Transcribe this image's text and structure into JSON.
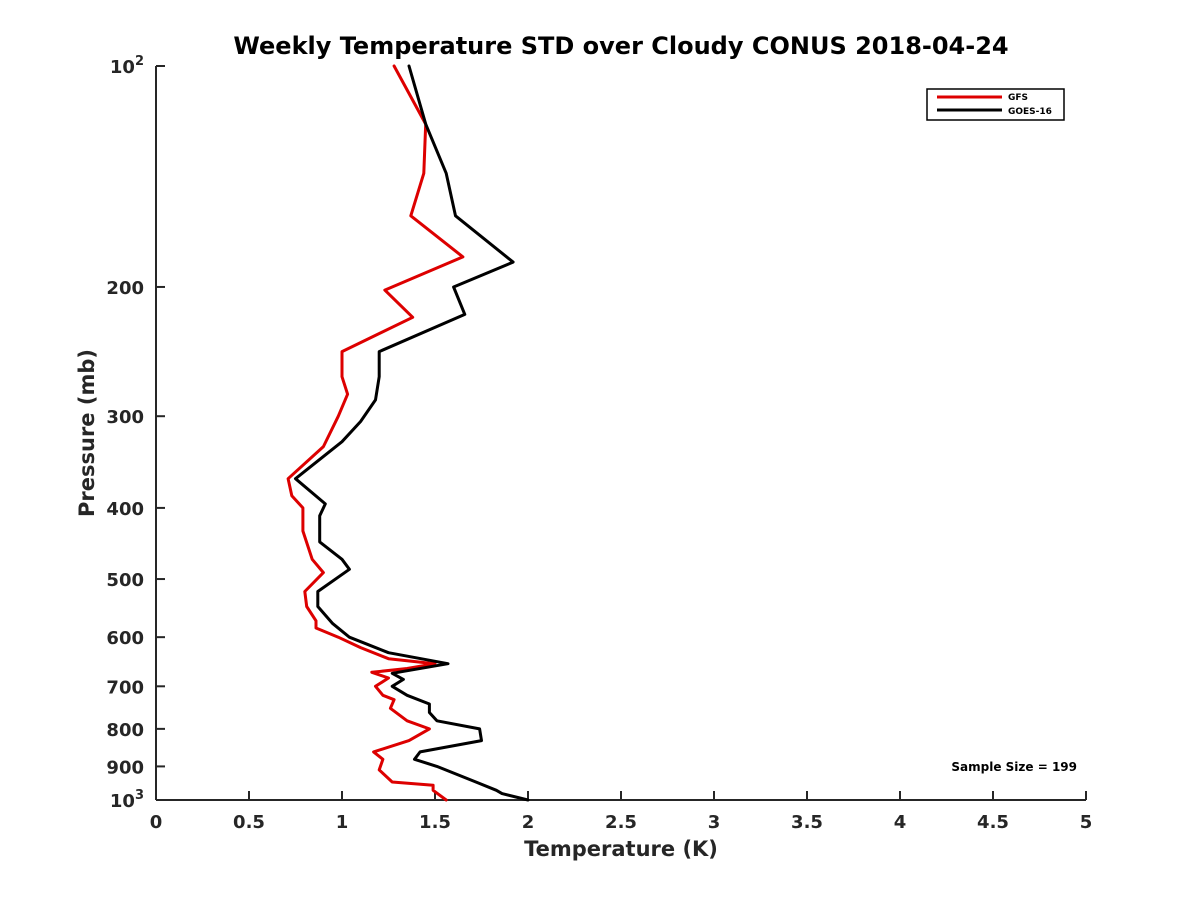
{
  "chart_data": {
    "type": "line",
    "title": "Weekly Temperature STD over Cloudy CONUS 2018-04-24",
    "xlabel": "Temperature (K)",
    "ylabel": "Pressure (mb)",
    "xlim": [
      0,
      5
    ],
    "ylim": [
      100,
      1000
    ],
    "yscale": "log",
    "yreversed": true,
    "x_ticks": [
      {
        "value": 0,
        "label": "0"
      },
      {
        "value": 0.5,
        "label": "0.5"
      },
      {
        "value": 1,
        "label": "1"
      },
      {
        "value": 1.5,
        "label": "1.5"
      },
      {
        "value": 2,
        "label": "2"
      },
      {
        "value": 2.5,
        "label": "2.5"
      },
      {
        "value": 3,
        "label": "3"
      },
      {
        "value": 3.5,
        "label": "3.5"
      },
      {
        "value": 4,
        "label": "4"
      },
      {
        "value": 4.5,
        "label": "4.5"
      },
      {
        "value": 5,
        "label": "5"
      }
    ],
    "y_ticks": [
      {
        "value": 100,
        "label": "10",
        "sup": "2"
      },
      {
        "value": 200,
        "label": "200",
        "sup": ""
      },
      {
        "value": 300,
        "label": "300",
        "sup": ""
      },
      {
        "value": 400,
        "label": "400",
        "sup": ""
      },
      {
        "value": 500,
        "label": "500",
        "sup": ""
      },
      {
        "value": 600,
        "label": "600",
        "sup": ""
      },
      {
        "value": 700,
        "label": "700",
        "sup": ""
      },
      {
        "value": 800,
        "label": "800",
        "sup": ""
      },
      {
        "value": 900,
        "label": "900",
        "sup": ""
      },
      {
        "value": 1000,
        "label": "10",
        "sup": "3"
      }
    ],
    "legend_position": "top-right",
    "annotation": "Sample Size = 199",
    "series": [
      {
        "name": "GFS",
        "color": "#dd0000",
        "points": [
          [
            1.28,
            100
          ],
          [
            1.45,
            120
          ],
          [
            1.44,
            140
          ],
          [
            1.37,
            160
          ],
          [
            1.65,
            182
          ],
          [
            1.23,
            202
          ],
          [
            1.38,
            220
          ],
          [
            1.0,
            245
          ],
          [
            1.0,
            265
          ],
          [
            1.03,
            280
          ],
          [
            0.98,
            300
          ],
          [
            0.9,
            330
          ],
          [
            0.71,
            365
          ],
          [
            0.73,
            385
          ],
          [
            0.79,
            400
          ],
          [
            0.79,
            430
          ],
          [
            0.84,
            470
          ],
          [
            0.9,
            490
          ],
          [
            0.8,
            520
          ],
          [
            0.81,
            545
          ],
          [
            0.86,
            570
          ],
          [
            0.86,
            583
          ],
          [
            0.98,
            600
          ],
          [
            1.1,
            620
          ],
          [
            1.25,
            642
          ],
          [
            1.5,
            652
          ],
          [
            1.35,
            662
          ],
          [
            1.16,
            670
          ],
          [
            1.25,
            682
          ],
          [
            1.18,
            700
          ],
          [
            1.22,
            720
          ],
          [
            1.28,
            730
          ],
          [
            1.26,
            750
          ],
          [
            1.35,
            780
          ],
          [
            1.47,
            800
          ],
          [
            1.36,
            830
          ],
          [
            1.17,
            860
          ],
          [
            1.22,
            880
          ],
          [
            1.2,
            910
          ],
          [
            1.27,
            945
          ],
          [
            1.49,
            955
          ],
          [
            1.49,
            970
          ],
          [
            1.56,
            1000
          ]
        ]
      },
      {
        "name": "GOES-16",
        "color": "#000000",
        "points": [
          [
            1.36,
            100
          ],
          [
            1.45,
            120
          ],
          [
            1.56,
            140
          ],
          [
            1.61,
            160
          ],
          [
            1.92,
            185
          ],
          [
            1.6,
            200
          ],
          [
            1.66,
            218
          ],
          [
            1.2,
            245
          ],
          [
            1.2,
            265
          ],
          [
            1.18,
            285
          ],
          [
            1.1,
            305
          ],
          [
            1.0,
            325
          ],
          [
            0.75,
            365
          ],
          [
            0.91,
            395
          ],
          [
            0.88,
            410
          ],
          [
            0.88,
            445
          ],
          [
            1.0,
            470
          ],
          [
            1.04,
            485
          ],
          [
            0.87,
            520
          ],
          [
            0.87,
            545
          ],
          [
            0.95,
            575
          ],
          [
            1.04,
            600
          ],
          [
            1.25,
            630
          ],
          [
            1.57,
            652
          ],
          [
            1.27,
            672
          ],
          [
            1.33,
            685
          ],
          [
            1.27,
            700
          ],
          [
            1.35,
            720
          ],
          [
            1.47,
            740
          ],
          [
            1.47,
            760
          ],
          [
            1.51,
            780
          ],
          [
            1.74,
            800
          ],
          [
            1.75,
            830
          ],
          [
            1.42,
            860
          ],
          [
            1.39,
            880
          ],
          [
            1.51,
            900
          ],
          [
            1.72,
            945
          ],
          [
            1.83,
            970
          ],
          [
            1.86,
            980
          ],
          [
            2.0,
            1000
          ]
        ]
      }
    ]
  }
}
